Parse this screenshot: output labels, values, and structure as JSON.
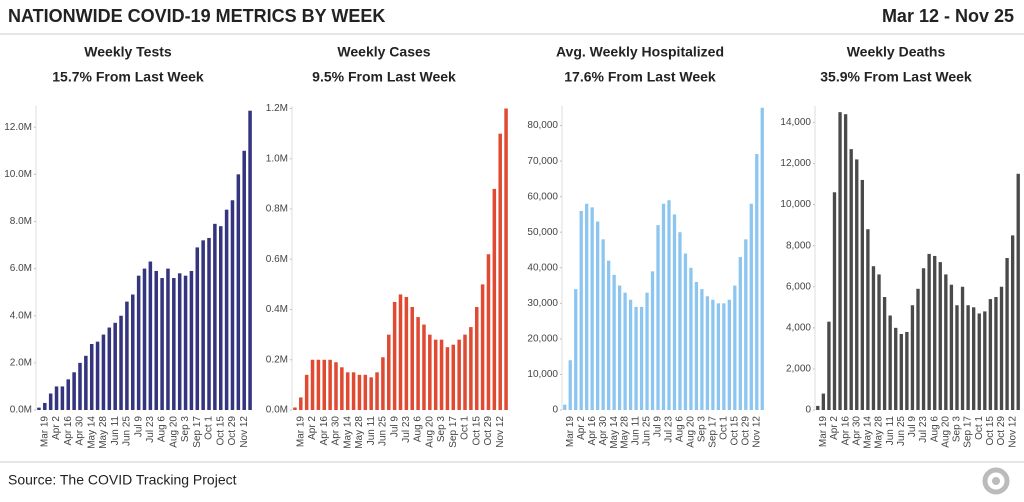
{
  "header": {
    "title": "NATIONWIDE COVID-19 METRICS BY WEEK",
    "date_range": "Mar 12 - Nov 25"
  },
  "source": "Source: The COVID Tracking Project",
  "chart_data": [
    {
      "type": "bar",
      "title": "Weekly Tests",
      "subtitle": "15.7% From Last Week",
      "color": "#34347f",
      "categories": [
        null,
        "Mar 19",
        null,
        "Apr 2",
        null,
        "Apr 16",
        null,
        "Apr 30",
        null,
        "May 14",
        null,
        "May 28",
        null,
        "Jun 11",
        null,
        "Jun 25",
        null,
        "Jul 9",
        null,
        "Jul 23",
        null,
        "Aug 6",
        null,
        "Aug 20",
        null,
        "Sep 3",
        null,
        "Sep 17",
        null,
        "Oct 1",
        null,
        "Oct 15",
        null,
        "Oct 29",
        null,
        "Nov 12",
        null
      ],
      "values": [
        0.1,
        0.3,
        0.7,
        1.0,
        1.0,
        1.3,
        1.6,
        2.0,
        2.3,
        2.8,
        2.9,
        3.2,
        3.5,
        3.7,
        4.0,
        4.6,
        4.9,
        5.7,
        6.0,
        6.3,
        5.9,
        5.6,
        6.0,
        5.6,
        5.8,
        5.7,
        5.9,
        6.9,
        7.2,
        7.3,
        7.9,
        7.8,
        8.5,
        8.9,
        10.0,
        11.0,
        12.7
      ],
      "ylim": [
        0,
        12.9
      ],
      "yticks": [
        {
          "value": 0,
          "label": "0.0M"
        },
        {
          "value": 2,
          "label": "2.0M"
        },
        {
          "value": 4,
          "label": "4.0M"
        },
        {
          "value": 6,
          "label": "6.0M"
        },
        {
          "value": 8,
          "label": "8.0M"
        },
        {
          "value": 10,
          "label": "10.0M"
        },
        {
          "value": 12,
          "label": "12.0M"
        }
      ]
    },
    {
      "type": "bar",
      "title": "Weekly Cases",
      "subtitle": "9.5% From Last Week",
      "color": "#e04a32",
      "categories": [
        null,
        "Mar 19",
        null,
        "Apr 2",
        null,
        "Apr 16",
        null,
        "Apr 30",
        null,
        "May 14",
        null,
        "May 28",
        null,
        "Jun 11",
        null,
        "Jun 25",
        null,
        "Jul 9",
        null,
        "Jul 23",
        null,
        "Aug 6",
        null,
        "Aug 20",
        null,
        "Sep 3",
        null,
        "Sep 17",
        null,
        "Oct 1",
        null,
        "Oct 15",
        null,
        "Oct 29",
        null,
        "Nov 12",
        null
      ],
      "values": [
        0.01,
        0.05,
        0.14,
        0.2,
        0.2,
        0.2,
        0.2,
        0.19,
        0.17,
        0.15,
        0.15,
        0.14,
        0.14,
        0.13,
        0.15,
        0.21,
        0.3,
        0.43,
        0.46,
        0.45,
        0.41,
        0.37,
        0.34,
        0.3,
        0.28,
        0.28,
        0.25,
        0.26,
        0.28,
        0.3,
        0.33,
        0.41,
        0.5,
        0.62,
        0.88,
        1.1,
        1.2
      ],
      "ylim": [
        0,
        1.21
      ],
      "yticks": [
        {
          "value": 0,
          "label": "0.0M"
        },
        {
          "value": 0.2,
          "label": "0.2M"
        },
        {
          "value": 0.4,
          "label": "0.4M"
        },
        {
          "value": 0.6,
          "label": "0.6M"
        },
        {
          "value": 0.8,
          "label": "0.8M"
        },
        {
          "value": 1.0,
          "label": "1.0M"
        },
        {
          "value": 1.2,
          "label": "1.2M"
        }
      ]
    },
    {
      "type": "bar",
      "title": "Avg. Weekly Hospitalized",
      "subtitle": "17.6% From Last Week",
      "color": "#8cc6f0",
      "categories": [
        null,
        "Mar 19",
        null,
        "Apr 2",
        null,
        "Apr 16",
        null,
        "Apr 30",
        null,
        "May 14",
        null,
        "May 28",
        null,
        "Jun 11",
        null,
        "Jun 25",
        null,
        "Jul 9",
        null,
        "Jul 23",
        null,
        "Aug 6",
        null,
        "Aug 20",
        null,
        "Sep 3",
        null,
        "Sep 17",
        null,
        "Oct 1",
        null,
        "Oct 15",
        null,
        "Oct 29",
        null,
        "Nov 12",
        null
      ],
      "values": [
        1500,
        14000,
        34000,
        56000,
        58000,
        57000,
        53000,
        48000,
        42000,
        38000,
        35000,
        33000,
        31000,
        29000,
        29000,
        33000,
        39000,
        52000,
        58000,
        59000,
        55000,
        50000,
        44000,
        40000,
        36000,
        34000,
        32000,
        31000,
        30000,
        30000,
        31000,
        35000,
        43000,
        48000,
        58000,
        72000,
        85000
      ],
      "ylim": [
        0,
        85500
      ],
      "yticks": [
        0,
        {
          "value": 10000,
          "label": "10,000"
        },
        {
          "value": 20000,
          "label": "20,000"
        },
        {
          "value": 30000,
          "label": "30,000"
        },
        {
          "value": 40000,
          "label": "40,000"
        },
        {
          "value": 50000,
          "label": "50,000"
        },
        {
          "value": 60000,
          "label": "60,000"
        },
        {
          "value": 70000,
          "label": "70,000"
        },
        {
          "value": 80000,
          "label": "80,000"
        }
      ]
    },
    {
      "type": "bar",
      "title": "Weekly Deaths",
      "subtitle": "35.9% From Last Week",
      "color": "#4a4a4a",
      "categories": [
        null,
        "Mar 19",
        null,
        "Apr 2",
        null,
        "Apr 16",
        null,
        "Apr 30",
        null,
        "May 14",
        null,
        "May 28",
        null,
        "Jun 11",
        null,
        "Jun 25",
        null,
        "Jul 9",
        null,
        "Jul 23",
        null,
        "Aug 6",
        null,
        "Aug 20",
        null,
        "Sep 3",
        null,
        "Sep 17",
        null,
        "Oct 1",
        null,
        "Oct 15",
        null,
        "Oct 29",
        null,
        "Nov 12",
        null
      ],
      "values": [
        200,
        800,
        4300,
        10600,
        14500,
        14400,
        12700,
        12200,
        11200,
        8800,
        7000,
        6600,
        5500,
        4600,
        4000,
        3700,
        3800,
        5100,
        5900,
        6900,
        7600,
        7500,
        7200,
        6600,
        6100,
        5100,
        6000,
        5100,
        5000,
        4700,
        4800,
        5400,
        5500,
        6000,
        7400,
        8500,
        11500
      ],
      "ylim": [
        0,
        14800
      ],
      "yticks": [
        0,
        {
          "value": 2000,
          "label": "2,000"
        },
        {
          "value": 4000,
          "label": "4,000"
        },
        {
          "value": 6000,
          "label": "6,000"
        },
        {
          "value": 8000,
          "label": "8,000"
        },
        {
          "value": 10000,
          "label": "10,000"
        },
        {
          "value": 12000,
          "label": "12,000"
        },
        {
          "value": 14000,
          "label": "14,000"
        }
      ]
    }
  ]
}
